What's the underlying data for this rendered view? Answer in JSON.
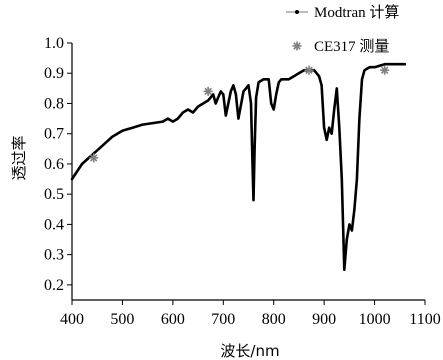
{
  "chart_data": {
    "type": "line",
    "xlabel": "波长/nm",
    "ylabel": "透过率",
    "xlim": [
      400,
      1100
    ],
    "ylim": [
      0.15,
      1.0
    ],
    "xticks": [
      400,
      500,
      600,
      700,
      800,
      900,
      1000,
      1100
    ],
    "yticks": [
      0.2,
      0.3,
      0.4,
      0.5,
      0.6,
      0.7,
      0.8,
      0.9,
      1.0
    ],
    "xtick_labels": [
      "400",
      "500",
      "600",
      "700",
      "800",
      "900",
      "1000",
      "1100"
    ],
    "ytick_labels": [
      "0.2",
      "0.3",
      "0.4",
      "0.5",
      "0.6",
      "0.7",
      "0.8",
      "0.9",
      "1.0"
    ],
    "legend_position": "top-right",
    "grid": false,
    "series": [
      {
        "name": "Modtran 计算",
        "type": "line",
        "color": "#000000",
        "x": [
          400,
          420,
          440,
          460,
          480,
          500,
          520,
          540,
          560,
          580,
          590,
          600,
          610,
          620,
          630,
          640,
          650,
          660,
          670,
          680,
          685,
          690,
          695,
          700,
          705,
          710,
          715,
          720,
          725,
          730,
          740,
          750,
          755,
          758,
          760,
          762,
          765,
          770,
          780,
          790,
          795,
          800,
          805,
          810,
          815,
          820,
          830,
          840,
          850,
          860,
          870,
          880,
          890,
          895,
          900,
          905,
          910,
          915,
          920,
          925,
          930,
          935,
          940,
          945,
          950,
          955,
          960,
          965,
          970,
          975,
          980,
          990,
          1000,
          1020,
          1040,
          1060
        ],
        "y": [
          0.55,
          0.6,
          0.63,
          0.66,
          0.69,
          0.71,
          0.72,
          0.73,
          0.735,
          0.74,
          0.75,
          0.74,
          0.75,
          0.77,
          0.78,
          0.77,
          0.79,
          0.8,
          0.81,
          0.83,
          0.8,
          0.82,
          0.84,
          0.83,
          0.76,
          0.8,
          0.84,
          0.86,
          0.83,
          0.75,
          0.84,
          0.86,
          0.8,
          0.6,
          0.48,
          0.65,
          0.82,
          0.87,
          0.88,
          0.88,
          0.8,
          0.78,
          0.83,
          0.87,
          0.88,
          0.88,
          0.88,
          0.89,
          0.9,
          0.91,
          0.91,
          0.91,
          0.89,
          0.86,
          0.72,
          0.68,
          0.72,
          0.7,
          0.78,
          0.85,
          0.72,
          0.55,
          0.25,
          0.35,
          0.4,
          0.38,
          0.45,
          0.55,
          0.75,
          0.88,
          0.91,
          0.92,
          0.92,
          0.93,
          0.93,
          0.93
        ]
      },
      {
        "name": "CE317 测量",
        "type": "scatter",
        "color": "#7f7f7f",
        "x": [
          443,
          670,
          870,
          1020
        ],
        "y": [
          0.62,
          0.84,
          0.91,
          0.91
        ]
      }
    ]
  }
}
